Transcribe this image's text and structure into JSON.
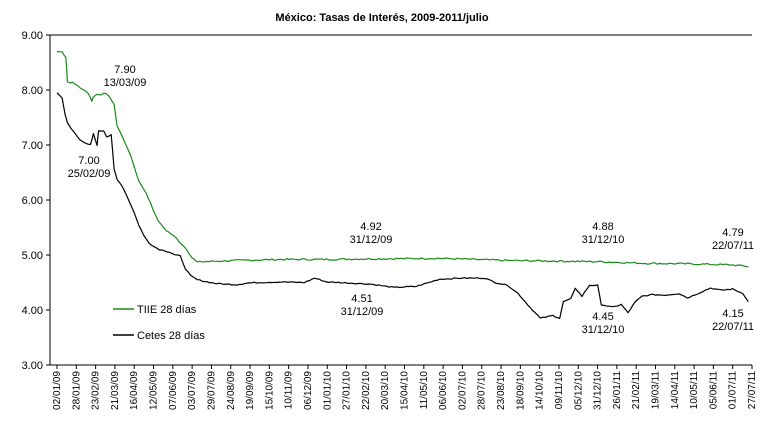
{
  "chart_data": {
    "type": "line",
    "title": "México: Tasas de Interés, 2009-2011/julio",
    "xlabel": "",
    "ylabel": "",
    "ylim": [
      3.0,
      9.0
    ],
    "yticks": [
      "3.00",
      "4.00",
      "5.00",
      "6.00",
      "7.00",
      "8.00",
      "9.00"
    ],
    "x_range": [
      "02/01/09",
      "22/07/11"
    ],
    "x_ticks": [
      "02/01/09",
      "28/01/09",
      "23/02/09",
      "21/03/09",
      "16/04/09",
      "12/05/09",
      "07/06/09",
      "03/07/09",
      "29/07/09",
      "24/08/09",
      "19/09/09",
      "15/10/09",
      "10/11/09",
      "06/12/09",
      "01/01/10",
      "27/01/10",
      "22/02/10",
      "20/03/10",
      "15/04/10",
      "11/05/10",
      "06/06/10",
      "02/07/10",
      "28/07/10",
      "23/08/10",
      "18/09/10",
      "14/10/10",
      "09/11/10",
      "05/12/10",
      "31/12/10",
      "26/01/11",
      "21/02/11",
      "19/03/11",
      "14/04/11",
      "10/05/11",
      "05/06/11",
      "01/07/11",
      "27/07/11"
    ],
    "grid": false,
    "legend_position": "bottom-left",
    "colors": {
      "TIIE 28 días": "#1a8a1a",
      "Cetes 28 días": "#000000"
    },
    "series": [
      {
        "name": "TIIE 28 días",
        "points": [
          [
            "02/01/09",
            8.7
          ],
          [
            "09/01/09",
            8.69
          ],
          [
            "14/01/09",
            8.6
          ],
          [
            "16/01/09",
            8.15
          ],
          [
            "23/01/09",
            8.13
          ],
          [
            "30/01/09",
            8.08
          ],
          [
            "06/02/09",
            8.0
          ],
          [
            "13/02/09",
            7.95
          ],
          [
            "18/02/09",
            7.8
          ],
          [
            "20/02/09",
            7.88
          ],
          [
            "25/02/09",
            7.92
          ],
          [
            "06/03/09",
            7.93
          ],
          [
            "13/03/09",
            7.9
          ],
          [
            "20/03/09",
            7.72
          ],
          [
            "24/03/09",
            7.35
          ],
          [
            "31/03/09",
            7.15
          ],
          [
            "07/04/09",
            6.95
          ],
          [
            "15/04/09",
            6.65
          ],
          [
            "22/04/09",
            6.35
          ],
          [
            "29/04/09",
            6.2
          ],
          [
            "08/05/09",
            5.95
          ],
          [
            "15/05/09",
            5.7
          ],
          [
            "22/05/09",
            5.55
          ],
          [
            "29/05/09",
            5.45
          ],
          [
            "05/06/09",
            5.38
          ],
          [
            "12/06/09",
            5.3
          ],
          [
            "19/06/09",
            5.2
          ],
          [
            "26/06/09",
            5.1
          ],
          [
            "03/07/09",
            4.95
          ],
          [
            "10/07/09",
            4.87
          ],
          [
            "20/07/09",
            4.88
          ],
          [
            "01/09/09",
            4.9
          ],
          [
            "01/11/09",
            4.92
          ],
          [
            "31/12/09",
            4.92
          ],
          [
            "01/03/10",
            4.93
          ],
          [
            "01/06/10",
            4.94
          ],
          [
            "01/09/10",
            4.9
          ],
          [
            "31/12/10",
            4.88
          ],
          [
            "01/03/11",
            4.85
          ],
          [
            "01/05/11",
            4.84
          ],
          [
            "01/07/11",
            4.82
          ],
          [
            "22/07/11",
            4.79
          ]
        ]
      },
      {
        "name": "Cetes 28 días",
        "points": [
          [
            "02/01/09",
            7.95
          ],
          [
            "09/01/09",
            7.85
          ],
          [
            "13/01/09",
            7.55
          ],
          [
            "16/01/09",
            7.4
          ],
          [
            "21/01/09",
            7.3
          ],
          [
            "27/01/09",
            7.2
          ],
          [
            "02/02/09",
            7.1
          ],
          [
            "10/02/09",
            7.02
          ],
          [
            "16/02/09",
            7.0
          ],
          [
            "20/02/09",
            7.2
          ],
          [
            "25/02/09",
            7.0
          ],
          [
            "27/02/09",
            7.26
          ],
          [
            "06/03/09",
            7.26
          ],
          [
            "10/03/09",
            7.15
          ],
          [
            "16/03/09",
            7.18
          ],
          [
            "20/03/09",
            6.55
          ],
          [
            "24/03/09",
            6.38
          ],
          [
            "31/03/09",
            6.25
          ],
          [
            "07/04/09",
            6.05
          ],
          [
            "15/04/09",
            5.8
          ],
          [
            "22/04/09",
            5.55
          ],
          [
            "29/04/09",
            5.35
          ],
          [
            "06/05/09",
            5.22
          ],
          [
            "13/05/09",
            5.15
          ],
          [
            "20/05/09",
            5.1
          ],
          [
            "27/05/09",
            5.08
          ],
          [
            "03/06/09",
            5.05
          ],
          [
            "10/06/09",
            5.0
          ],
          [
            "17/06/09",
            4.98
          ],
          [
            "24/06/09",
            4.75
          ],
          [
            "01/07/09",
            4.62
          ],
          [
            "10/07/09",
            4.55
          ],
          [
            "20/07/09",
            4.52
          ],
          [
            "05/08/09",
            4.48
          ],
          [
            "01/09/09",
            4.46
          ],
          [
            "15/09/09",
            4.49
          ],
          [
            "01/10/09",
            4.5
          ],
          [
            "01/11/09",
            4.51
          ],
          [
            "01/12/09",
            4.5
          ],
          [
            "15/12/09",
            4.58
          ],
          [
            "31/12/09",
            4.51
          ],
          [
            "01/02/10",
            4.49
          ],
          [
            "01/03/10",
            4.47
          ],
          [
            "01/04/10",
            4.41
          ],
          [
            "01/05/10",
            4.43
          ],
          [
            "01/06/10",
            4.56
          ],
          [
            "01/07/10",
            4.58
          ],
          [
            "01/08/10",
            4.58
          ],
          [
            "15/08/10",
            4.5
          ],
          [
            "01/09/10",
            4.45
          ],
          [
            "15/09/10",
            4.3
          ],
          [
            "01/10/10",
            4.05
          ],
          [
            "15/10/10",
            3.85
          ],
          [
            "01/11/10",
            3.9
          ],
          [
            "10/11/10",
            3.85
          ],
          [
            "15/11/10",
            4.15
          ],
          [
            "25/11/10",
            4.2
          ],
          [
            "01/12/10",
            4.4
          ],
          [
            "10/12/10",
            4.25
          ],
          [
            "20/12/10",
            4.45
          ],
          [
            "31/12/10",
            4.45
          ],
          [
            "05/01/11",
            4.1
          ],
          [
            "20/01/11",
            4.05
          ],
          [
            "01/02/11",
            4.1
          ],
          [
            "10/02/11",
            3.95
          ],
          [
            "20/02/11",
            4.15
          ],
          [
            "01/03/11",
            4.25
          ],
          [
            "15/03/11",
            4.28
          ],
          [
            "01/04/11",
            4.27
          ],
          [
            "20/04/11",
            4.3
          ],
          [
            "01/05/11",
            4.22
          ],
          [
            "15/05/11",
            4.3
          ],
          [
            "01/06/11",
            4.4
          ],
          [
            "15/06/11",
            4.36
          ],
          [
            "01/07/11",
            4.38
          ],
          [
            "15/07/11",
            4.3
          ],
          [
            "22/07/11",
            4.15
          ]
        ]
      }
    ],
    "annotations": [
      {
        "text": [
          "7.90",
          "13/03/09"
        ],
        "series": "TIIE 28 días",
        "x": "13/03/09",
        "y": 7.9
      },
      {
        "text": [
          "7.00",
          "25/02/09"
        ],
        "series": "Cetes 28 días",
        "x": "25/02/09",
        "y": 7.0
      },
      {
        "text": [
          "4.92",
          "31/12/09"
        ],
        "series": "TIIE 28 días",
        "x": "31/12/09",
        "y": 4.92
      },
      {
        "text": [
          "4.51",
          "31/12/09"
        ],
        "series": "Cetes 28 días",
        "x": "31/12/09",
        "y": 4.51
      },
      {
        "text": [
          "4.88",
          "31/12/10"
        ],
        "series": "TIIE 28 días",
        "x": "31/12/10",
        "y": 4.88
      },
      {
        "text": [
          "4.45",
          "31/12/10"
        ],
        "series": "Cetes 28 días",
        "x": "31/12/10",
        "y": 4.45
      },
      {
        "text": [
          "4.79",
          "22/07/11"
        ],
        "series": "TIIE 28 días",
        "x": "22/07/11",
        "y": 4.79
      },
      {
        "text": [
          "4.15",
          "22/07/11"
        ],
        "series": "Cetes 28 días",
        "x": "22/07/11",
        "y": 4.15
      }
    ]
  }
}
